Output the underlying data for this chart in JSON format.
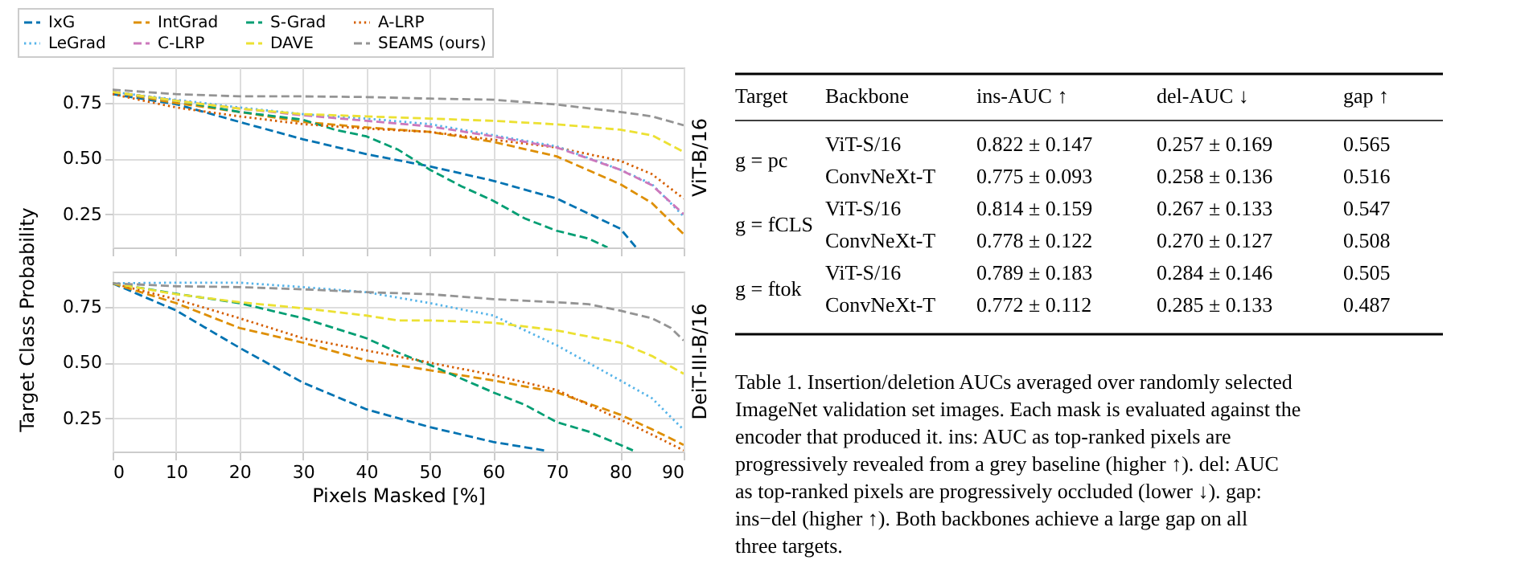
{
  "chart_data": [
    {
      "type": "line",
      "ylabel": "Target Class Probability",
      "y2label": "ViT-B/16",
      "xlim": [
        0,
        90
      ],
      "xticks": [
        0,
        10,
        20,
        30,
        40,
        50,
        60,
        70,
        80,
        90
      ],
      "ylim": [
        0.1,
        0.91
      ],
      "yticks": [
        {
          "value": 0.25,
          "label": "0.25"
        },
        {
          "value": 0.5,
          "label": "0.50"
        },
        {
          "value": 0.75,
          "label": "0.75"
        }
      ],
      "grid": true,
      "legend": "top",
      "tick_labels": "y",
      "series": [
        {
          "name": "IxG",
          "color": "#0173b2",
          "line_style": "dashed",
          "x": [
            0,
            10,
            20,
            30,
            40,
            50,
            60,
            70,
            80,
            82.5
          ],
          "values": [
            0.79,
            0.745,
            0.665,
            0.587,
            0.52,
            0.465,
            0.4,
            0.32,
            0.185,
            0.1
          ]
        },
        {
          "name": "IntGrad",
          "color": "#de8f05",
          "line_style": "dashed",
          "x": [
            0,
            10,
            20,
            30,
            40,
            50,
            60,
            70,
            80,
            85,
            90
          ],
          "values": [
            0.8,
            0.75,
            0.71,
            0.665,
            0.64,
            0.62,
            0.575,
            0.51,
            0.385,
            0.3,
            0.16
          ]
        },
        {
          "name": "S-Grad",
          "color": "#029e73",
          "line_style": "dashed",
          "x": [
            0,
            10,
            20,
            30,
            35,
            40,
            45,
            50,
            55,
            60,
            65,
            70,
            75,
            78
          ],
          "values": [
            0.8,
            0.76,
            0.71,
            0.675,
            0.63,
            0.6,
            0.54,
            0.45,
            0.375,
            0.31,
            0.23,
            0.175,
            0.14,
            0.1
          ]
        },
        {
          "name": "A-LRP",
          "color": "#d55e00",
          "line_style": "dotted",
          "x": [
            0,
            10,
            20,
            30,
            40,
            50,
            60,
            70,
            80,
            85,
            90
          ],
          "values": [
            0.79,
            0.73,
            0.69,
            0.655,
            0.635,
            0.62,
            0.585,
            0.55,
            0.49,
            0.43,
            0.32
          ]
        },
        {
          "name": "LeGrad",
          "color": "#56b4e9",
          "line_style": "dotted",
          "x": [
            0,
            10,
            20,
            30,
            40,
            50,
            60,
            70,
            80,
            85,
            90
          ],
          "values": [
            0.8,
            0.765,
            0.73,
            0.7,
            0.68,
            0.655,
            0.605,
            0.555,
            0.45,
            0.385,
            0.24
          ]
        },
        {
          "name": "C-LRP",
          "color": "#cc78bc",
          "line_style": "dashed",
          "x": [
            0,
            10,
            20,
            30,
            40,
            50,
            60,
            70,
            80,
            85,
            90
          ],
          "values": [
            0.8,
            0.76,
            0.725,
            0.695,
            0.67,
            0.645,
            0.6,
            0.55,
            0.45,
            0.38,
            0.25
          ]
        },
        {
          "name": "DAVE",
          "color": "#ece133",
          "line_style": "dashed",
          "x": [
            0,
            10,
            20,
            30,
            40,
            50,
            60,
            70,
            80,
            85,
            90
          ],
          "values": [
            0.8,
            0.76,
            0.725,
            0.7,
            0.69,
            0.68,
            0.67,
            0.654,
            0.63,
            0.605,
            0.53
          ]
        },
        {
          "name": "SEAMS (ours)",
          "color": "#949494",
          "line_style": "dashed",
          "x": [
            0,
            10,
            20,
            30,
            40,
            50,
            60,
            70,
            80,
            85,
            90
          ],
          "values": [
            0.81,
            0.79,
            0.78,
            0.78,
            0.777,
            0.77,
            0.765,
            0.743,
            0.71,
            0.69,
            0.65
          ]
        }
      ]
    },
    {
      "type": "line",
      "xlabel": "Pixels Masked [%]",
      "y2label": "DeiT-III-B/16",
      "xlim": [
        0,
        90
      ],
      "xticks": [
        0,
        10,
        20,
        30,
        40,
        50,
        60,
        70,
        80,
        90
      ],
      "ylim": [
        0.1,
        0.91
      ],
      "yticks": [
        {
          "value": 0.25,
          "label": "0.25"
        },
        {
          "value": 0.5,
          "label": "0.50"
        },
        {
          "value": 0.75,
          "label": "0.75"
        }
      ],
      "grid": true,
      "series": [
        {
          "name": "IxG",
          "color": "#0173b2",
          "line_style": "dashed",
          "x": [
            0,
            10,
            20,
            30,
            40,
            50,
            60,
            68
          ],
          "values": [
            0.857,
            0.735,
            0.567,
            0.41,
            0.29,
            0.21,
            0.143,
            0.105
          ]
        },
        {
          "name": "IntGrad",
          "color": "#de8f05",
          "line_style": "dashed",
          "x": [
            0,
            10,
            20,
            30,
            40,
            50,
            60,
            70,
            80,
            85,
            90
          ],
          "values": [
            0.857,
            0.768,
            0.656,
            0.59,
            0.51,
            0.466,
            0.42,
            0.366,
            0.266,
            0.2,
            0.13
          ]
        },
        {
          "name": "S-Grad",
          "color": "#029e73",
          "line_style": "dashed",
          "x": [
            0,
            10,
            20,
            30,
            40,
            45,
            50,
            60,
            65,
            70,
            75,
            80,
            82
          ],
          "values": [
            0.857,
            0.81,
            0.768,
            0.7,
            0.61,
            0.545,
            0.49,
            0.366,
            0.31,
            0.232,
            0.19,
            0.13,
            0.105
          ]
        },
        {
          "name": "A-LRP",
          "color": "#d55e00",
          "line_style": "dotted",
          "x": [
            0,
            10,
            20,
            30,
            40,
            50,
            60,
            70,
            80,
            85,
            90
          ],
          "values": [
            0.857,
            0.785,
            0.7,
            0.61,
            0.555,
            0.5,
            0.444,
            0.377,
            0.244,
            0.176,
            0.105
          ]
        },
        {
          "name": "LeGrad",
          "color": "#56b4e9",
          "line_style": "dotted",
          "x": [
            0,
            10,
            20,
            30,
            40,
            50,
            60,
            70,
            80,
            85,
            90
          ],
          "values": [
            0.857,
            0.86,
            0.86,
            0.84,
            0.817,
            0.768,
            0.712,
            0.578,
            0.42,
            0.34,
            0.198
          ]
        },
        {
          "name": "DAVE",
          "color": "#ece133",
          "line_style": "dashed",
          "x": [
            0,
            10,
            20,
            30,
            40,
            45,
            50,
            60,
            70,
            80,
            85,
            90
          ],
          "values": [
            0.857,
            0.808,
            0.772,
            0.745,
            0.712,
            0.69,
            0.69,
            0.68,
            0.645,
            0.59,
            0.53,
            0.45
          ]
        },
        {
          "name": "SEAMS (ours)",
          "color": "#949494",
          "line_style": "dashed",
          "x": [
            0,
            10,
            20,
            30,
            40,
            50,
            60,
            70,
            75,
            80,
            85,
            88,
            90
          ],
          "values": [
            0.857,
            0.844,
            0.84,
            0.83,
            0.817,
            0.808,
            0.786,
            0.772,
            0.763,
            0.734,
            0.7,
            0.656,
            0.6
          ]
        }
      ]
    },
    {
      "type": "other",
      "annotations": [
        "Target",
        "Backbone",
        "ins-AUC ↑",
        "del-AUC ↓",
        "gap ↑",
        "g = pc",
        "ViT-S/16",
        "0.822 ± 0.147",
        "0.257 ± 0.169",
        "0.565",
        "ConvNeXt-T",
        "0.775 ± 0.093",
        "0.258 ± 0.136",
        "0.516",
        "g = fCLS",
        "ViT-S/16",
        "0.814 ± 0.159",
        "0.267 ± 0.133",
        "0.547",
        "ConvNeXt-T",
        "0.778 ± 0.122",
        "0.270 ± 0.127",
        "0.508",
        "g = ftok",
        "ViT-S/16",
        "0.789 ± 0.183",
        "0.284 ± 0.146",
        "0.505",
        "ConvNeXt-T",
        "0.772 ± 0.112",
        "0.285 ± 0.133",
        "0.487",
        "Table 1. Insertion/deletion AUCs averaged over randomly selected ImageNet validation set images. Each mask is evaluated against the encoder that produced it. ins: AUC as top-ranked pixels are progressively revealed from a grey baseline (higher ↑). del: AUC as top-ranked pixels are progressively occluded (lower ↓). gap: ins−del (higher ↑). Both backbones achieve a large gap on all three targets."
      ]
    }
  ]
}
